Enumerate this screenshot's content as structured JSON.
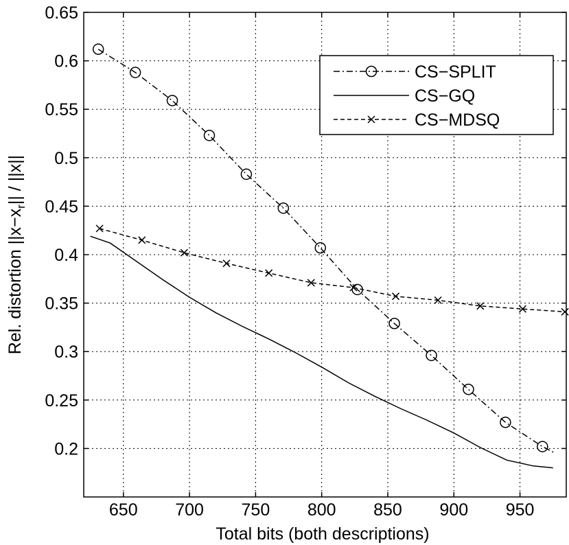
{
  "chart_data": {
    "type": "line",
    "title": "",
    "xlabel": "Total bits (both descriptions)",
    "ylabel": "Rel. distortion ||x−x",
    "ylabel_sub": "r",
    "ylabel_tail": "|| / ||x||",
    "xlim": [
      620,
      985
    ],
    "ylim": [
      0.15,
      0.65
    ],
    "xticks": [
      650,
      700,
      750,
      800,
      850,
      900,
      950
    ],
    "yticks": [
      0.2,
      0.25,
      0.3,
      0.35,
      0.4,
      0.45,
      0.5,
      0.55,
      0.6,
      0.65
    ],
    "grid": true,
    "legend_position": "top-right",
    "series": [
      {
        "name": "CS−SPLIT",
        "marker": "circle",
        "style": "dash-dot",
        "x": [
          631,
          659,
          687,
          715,
          743,
          771,
          799,
          827,
          855,
          883,
          911,
          939,
          967,
          977
        ],
        "y": [
          0.612,
          0.588,
          0.559,
          0.523,
          0.483,
          0.448,
          0.407,
          0.364,
          0.329,
          0.296,
          0.261,
          0.227,
          0.202,
          0.195
        ]
      },
      {
        "name": "CS−GQ",
        "marker": "none",
        "style": "solid",
        "x": [
          625,
          640,
          660,
          680,
          700,
          720,
          740,
          760,
          780,
          800,
          820,
          840,
          860,
          880,
          900,
          920,
          940,
          960,
          975
        ],
        "y": [
          0.419,
          0.412,
          0.393,
          0.374,
          0.356,
          0.34,
          0.326,
          0.313,
          0.299,
          0.284,
          0.268,
          0.254,
          0.241,
          0.229,
          0.216,
          0.201,
          0.188,
          0.182,
          0.18
        ]
      },
      {
        "name": "CS−MDSQ",
        "marker": "x",
        "style": "dashed",
        "x": [
          632,
          664,
          696,
          728,
          760,
          792,
          824,
          856,
          888,
          920,
          952,
          984
        ],
        "y": [
          0.427,
          0.415,
          0.402,
          0.391,
          0.381,
          0.371,
          0.366,
          0.357,
          0.353,
          0.347,
          0.344,
          0.341
        ]
      }
    ]
  },
  "colors": {
    "background": "#ffffff",
    "axes": "#000000",
    "grid": "#000000"
  }
}
